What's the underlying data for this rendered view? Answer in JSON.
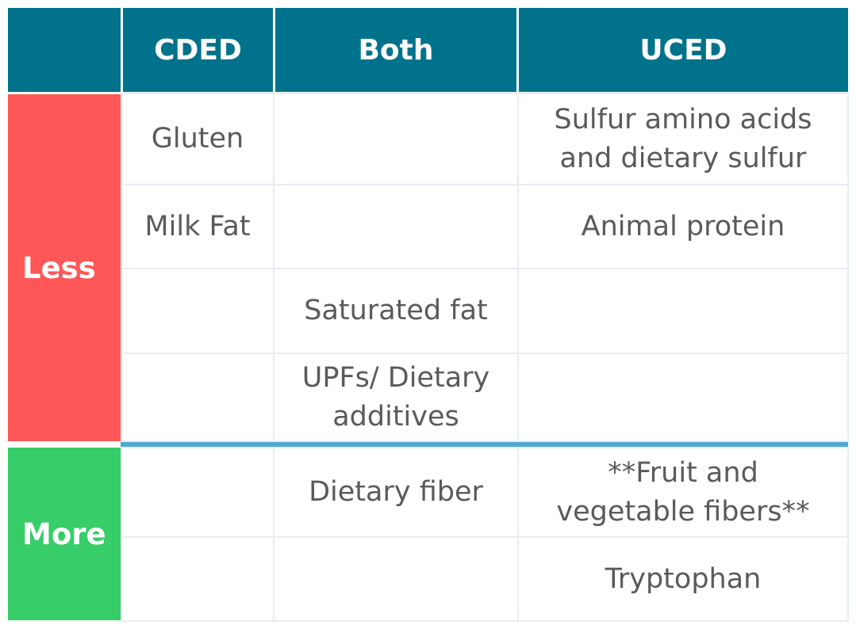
{
  "header": {
    "corner": "",
    "col1": "CDED",
    "col2": "Both",
    "col3": "UCED"
  },
  "groups": {
    "less": {
      "label": "Less",
      "color": "#FF5757"
    },
    "more": {
      "label": "More",
      "color": "#37CD69"
    }
  },
  "rows": [
    {
      "cded": "Gluten",
      "both": "",
      "uced": "Sulfur amino acids and dietary sulfur"
    },
    {
      "cded": "Milk Fat",
      "both": "",
      "uced": "Animal protein"
    },
    {
      "cded": "",
      "both": "Saturated fat",
      "uced": ""
    },
    {
      "cded": "",
      "both": "UPFs/ Dietary additives",
      "uced": ""
    },
    {
      "cded": "",
      "both": "Dietary fiber",
      "uced": "**Fruit and vegetable fibers**"
    },
    {
      "cded": "",
      "both": "",
      "uced": "Tryptophan"
    }
  ],
  "colors": {
    "header": "#00728C",
    "divider": "#4FA9CF"
  }
}
